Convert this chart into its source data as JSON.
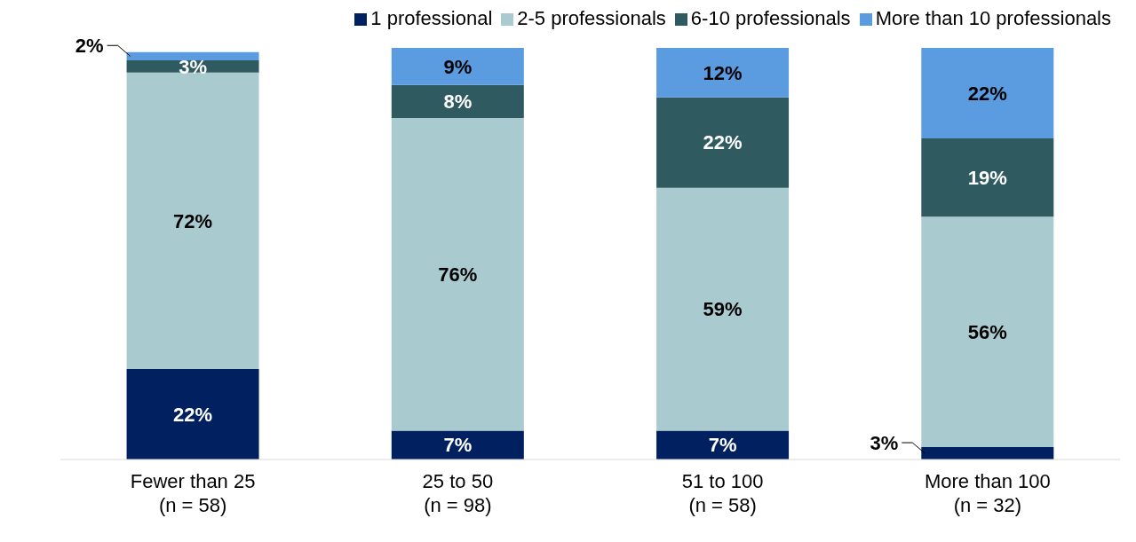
{
  "chart_data": {
    "type": "bar",
    "stacked": true,
    "legend": "top",
    "grid": false,
    "categories": [
      "Fewer than 25\n(n = 58)",
      "25 to 50\n(n = 98)",
      "51 to 100\n(n = 58)",
      "More than 100\n(n = 32)"
    ],
    "series": [
      {
        "name": "1 professional",
        "color": "#002060",
        "values": [
          22,
          7,
          7,
          3
        ],
        "value_labels": [
          "22%",
          "7%",
          "7%",
          "3%"
        ]
      },
      {
        "name": "2-5 professionals",
        "color": "#a9cbd0",
        "values": [
          72,
          76,
          59,
          56
        ],
        "value_labels": [
          "72%",
          "76%",
          "59%",
          "56%"
        ]
      },
      {
        "name": "6-10 professionals",
        "color": "#2f5a60",
        "values": [
          3,
          8,
          22,
          19
        ],
        "value_labels": [
          "3%",
          "8%",
          "22%",
          "19%"
        ]
      },
      {
        "name": "More than 10 professionals",
        "color": "#5b9be0",
        "values": [
          2,
          9,
          12,
          22
        ],
        "value_labels": [
          "2%",
          "9%",
          "12%",
          "22%"
        ]
      }
    ]
  }
}
